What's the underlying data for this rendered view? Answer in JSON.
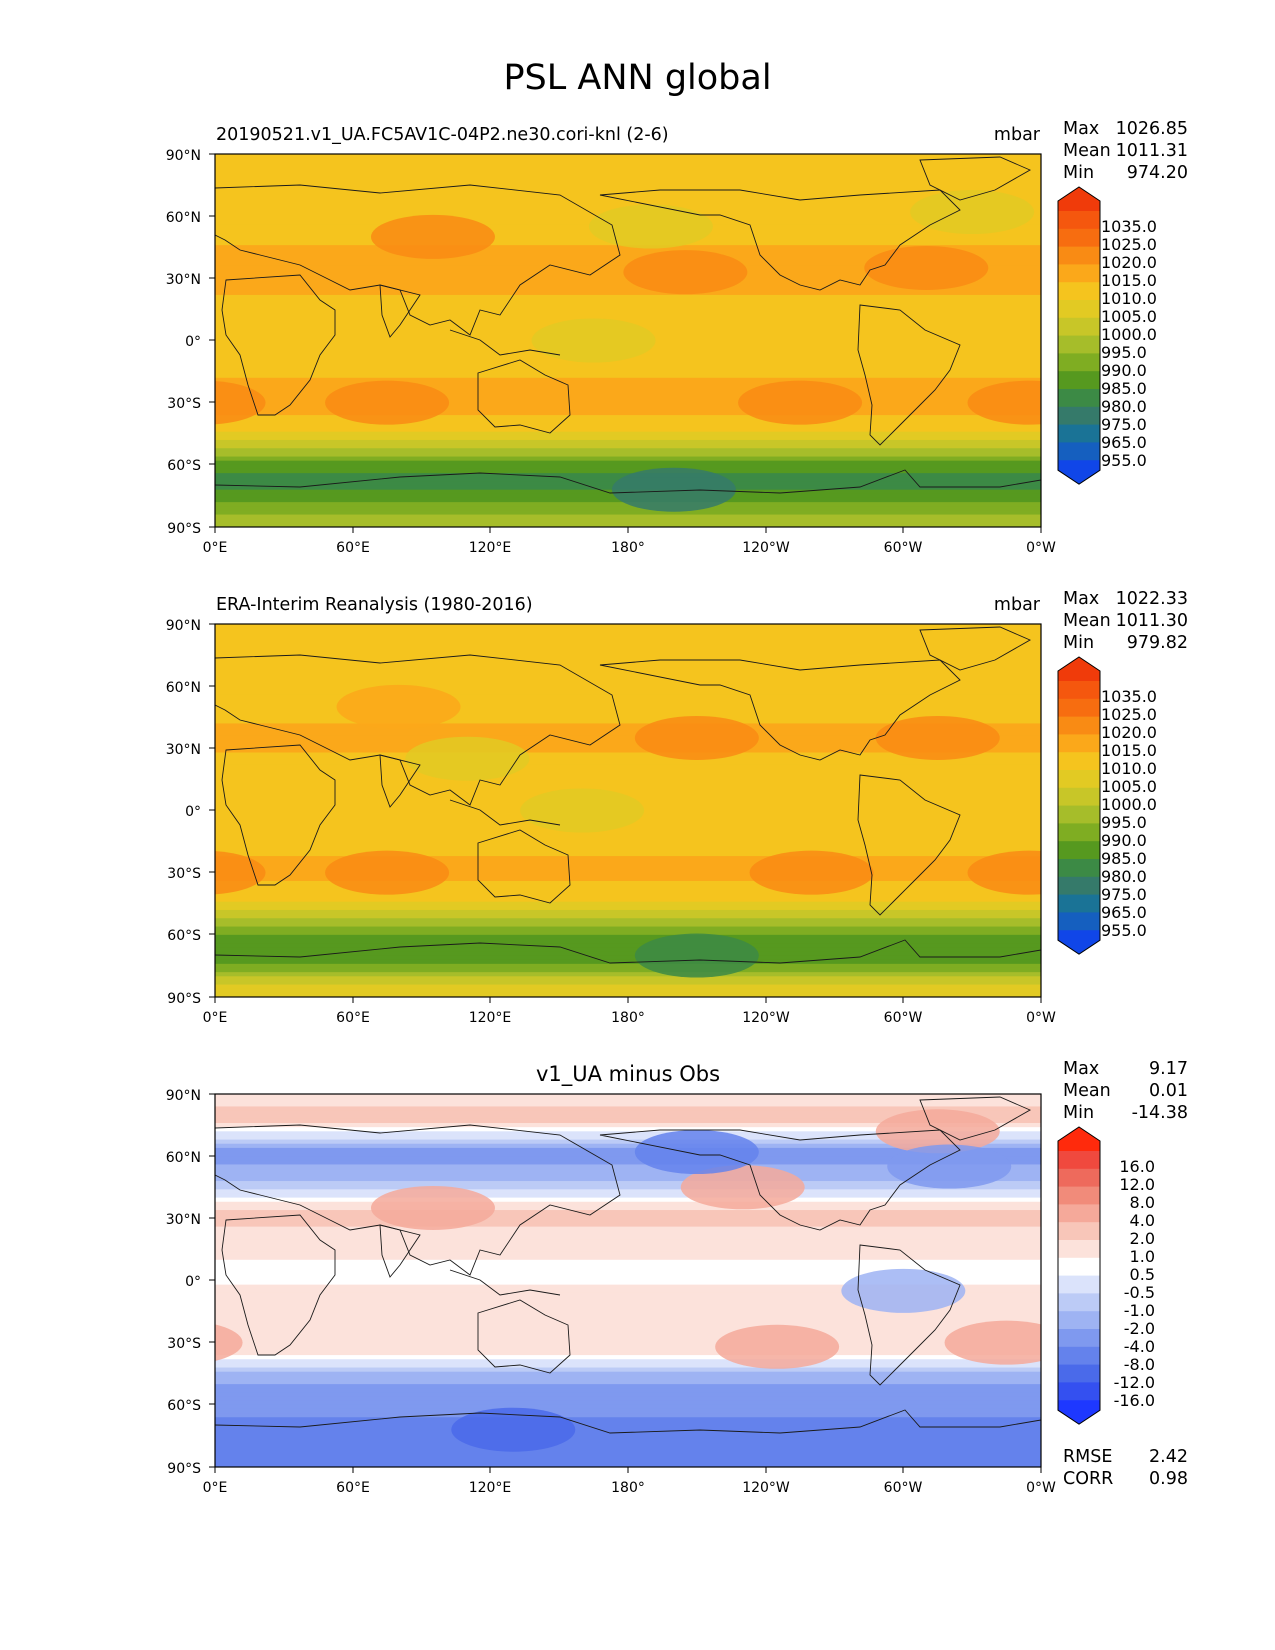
{
  "figure": {
    "title": "PSL ANN global"
  },
  "axes": {
    "lat_labels": [
      "90°N",
      "60°N",
      "30°N",
      "0°",
      "30°S",
      "60°S",
      "90°S"
    ],
    "lon_labels": [
      "0°E",
      "60°E",
      "120°E",
      "180°",
      "120°W",
      "60°W",
      "0°W"
    ]
  },
  "panels": [
    {
      "id": "test",
      "left_title": "20190521.v1_UA.FC5AV1C-04P2.ne30.cori-knl (2-6)",
      "center_title": "",
      "units": "mbar",
      "stats": [
        {
          "label": "Max",
          "value": "1026.85"
        },
        {
          "label": "Mean",
          "value": "1011.31"
        },
        {
          "label": "Min",
          "value": "974.20"
        }
      ],
      "colorbar_labels": [
        "1035.0",
        "1025.0",
        "1020.0",
        "1015.0",
        "1010.0",
        "1005.0",
        "1000.0",
        "995.0",
        "990.0",
        "985.0",
        "980.0",
        "975.0",
        "965.0",
        "955.0"
      ],
      "colorbar_colors": [
        "#f03b0a",
        "#f5570e",
        "#f76d10",
        "#f98b14",
        "#fba81a",
        "#f5c41e",
        "#e2ca23",
        "#c8c628",
        "#a6bd2a",
        "#7fad22",
        "#56991f",
        "#3c8a45",
        "#357a6a",
        "#1a7396",
        "#155fbf",
        "#1046e8"
      ],
      "field": {
        "bands": [
          {
            "lat": 90,
            "value": 1010
          },
          {
            "lat": 78,
            "value": 1013
          },
          {
            "lat": 65,
            "value": 1010
          },
          {
            "lat": 50,
            "value": 1014
          },
          {
            "lat": 35,
            "value": 1018
          },
          {
            "lat": 25,
            "value": 1016
          },
          {
            "lat": 10,
            "value": 1012
          },
          {
            "lat": 0,
            "value": 1010
          },
          {
            "lat": -15,
            "value": 1014
          },
          {
            "lat": -30,
            "value": 1018
          },
          {
            "lat": -42,
            "value": 1012
          },
          {
            "lat": -52,
            "value": 1000
          },
          {
            "lat": -58,
            "value": 990
          },
          {
            "lat": -65,
            "value": 983
          },
          {
            "lat": -72,
            "value": 985
          },
          {
            "lat": -80,
            "value": 992
          },
          {
            "lat": -90,
            "value": 1000
          }
        ],
        "highs": [
          {
            "lon": -155,
            "lat": 33,
            "value": 1022
          },
          {
            "lon": -50,
            "lat": 35,
            "value": 1021
          },
          {
            "lon": 95,
            "lat": 50,
            "value": 1022
          },
          {
            "lon": 75,
            "lat": -30,
            "value": 1021
          },
          {
            "lon": -105,
            "lat": -30,
            "value": 1021
          },
          {
            "lon": -5,
            "lat": -30,
            "value": 1021
          }
        ],
        "lows": [
          {
            "lon": -160,
            "lat": -72,
            "value": 976
          },
          {
            "lon": 165,
            "lat": 0,
            "value": 1008
          },
          {
            "lon": -170,
            "lat": 55,
            "value": 1005
          },
          {
            "lon": -30,
            "lat": 62,
            "value": 1007
          }
        ]
      }
    },
    {
      "id": "reference",
      "left_title": "ERA-Interim Reanalysis (1980-2016)",
      "center_title": "",
      "units": "mbar",
      "stats": [
        {
          "label": "Max",
          "value": "1022.33"
        },
        {
          "label": "Mean",
          "value": "1011.30"
        },
        {
          "label": "Min",
          "value": "979.82"
        }
      ],
      "colorbar_labels": [
        "1035.0",
        "1025.0",
        "1020.0",
        "1015.0",
        "1010.0",
        "1005.0",
        "1000.0",
        "995.0",
        "990.0",
        "985.0",
        "980.0",
        "975.0",
        "965.0",
        "955.0"
      ],
      "colorbar_colors": [
        "#f03b0a",
        "#f5570e",
        "#f76d10",
        "#f98b14",
        "#fba81a",
        "#f5c41e",
        "#e2ca23",
        "#c8c628",
        "#a6bd2a",
        "#7fad22",
        "#56991f",
        "#3c8a45",
        "#357a6a",
        "#1a7396",
        "#155fbf",
        "#1046e8"
      ],
      "field": {
        "bands": [
          {
            "lat": 90,
            "value": 1013
          },
          {
            "lat": 75,
            "value": 1012
          },
          {
            "lat": 60,
            "value": 1011
          },
          {
            "lat": 45,
            "value": 1014
          },
          {
            "lat": 35,
            "value": 1017
          },
          {
            "lat": 20,
            "value": 1013
          },
          {
            "lat": 5,
            "value": 1010
          },
          {
            "lat": -10,
            "value": 1012
          },
          {
            "lat": -30,
            "value": 1017
          },
          {
            "lat": -42,
            "value": 1012
          },
          {
            "lat": -52,
            "value": 1000
          },
          {
            "lat": -60,
            "value": 990
          },
          {
            "lat": -68,
            "value": 985
          },
          {
            "lat": -76,
            "value": 992
          },
          {
            "lat": -84,
            "value": 1005
          },
          {
            "lat": -90,
            "value": 1010
          }
        ],
        "highs": [
          {
            "lon": -150,
            "lat": 35,
            "value": 1020
          },
          {
            "lon": -45,
            "lat": 35,
            "value": 1020
          },
          {
            "lon": 75,
            "lat": -30,
            "value": 1020
          },
          {
            "lon": -100,
            "lat": -30,
            "value": 1020
          },
          {
            "lon": -5,
            "lat": -30,
            "value": 1020
          },
          {
            "lon": 80,
            "lat": 50,
            "value": 1017
          }
        ],
        "lows": [
          {
            "lon": -150,
            "lat": -70,
            "value": 982
          },
          {
            "lon": 110,
            "lat": 25,
            "value": 1008
          },
          {
            "lon": 160,
            "lat": 0,
            "value": 1008
          }
        ]
      }
    },
    {
      "id": "difference",
      "left_title": "",
      "center_title": "v1_UA minus Obs",
      "units": "",
      "stats": [
        {
          "label": "Max",
          "value": "9.17"
        },
        {
          "label": "Mean",
          "value": "0.01"
        },
        {
          "label": "Min",
          "value": "-14.38"
        }
      ],
      "extra_stats": [
        {
          "label": "RMSE",
          "value": "2.42"
        },
        {
          "label": "CORR",
          "value": "0.98"
        }
      ],
      "colorbar_labels": [
        "16.0",
        "12.0",
        "8.0",
        "4.0",
        "2.0",
        "1.0",
        "0.5",
        "-0.5",
        "-1.0",
        "-2.0",
        "-4.0",
        "-8.0",
        "-12.0",
        "-16.0"
      ],
      "colorbar_colors": [
        "#ff2a0c",
        "#f0493e",
        "#ee6a5c",
        "#f18b7a",
        "#f5a99a",
        "#f8c6b9",
        "#fce2db",
        "#ffffff",
        "#dbe3fb",
        "#bccbf6",
        "#9eb3f3",
        "#7f99ef",
        "#6482ec",
        "#4a6aea",
        "#3450f0",
        "#1e38ff"
      ],
      "field": {
        "bands": [
          {
            "lat": 90,
            "value": 1.5
          },
          {
            "lat": 78,
            "value": 2.5
          },
          {
            "lat": 70,
            "value": 0
          },
          {
            "lat": 62,
            "value": -2.5
          },
          {
            "lat": 50,
            "value": -1.5
          },
          {
            "lat": 42,
            "value": 0
          },
          {
            "lat": 32,
            "value": 2.5
          },
          {
            "lat": 20,
            "value": 1.5
          },
          {
            "lat": 5,
            "value": 0.8
          },
          {
            "lat": -10,
            "value": 1.2
          },
          {
            "lat": -25,
            "value": 1.6
          },
          {
            "lat": -35,
            "value": 1.2
          },
          {
            "lat": -40,
            "value": 0
          },
          {
            "lat": -47,
            "value": -1.5
          },
          {
            "lat": -55,
            "value": -3
          },
          {
            "lat": -65,
            "value": -4
          },
          {
            "lat": -75,
            "value": -6
          },
          {
            "lat": -90,
            "value": -6
          }
        ],
        "highs": [
          {
            "lon": 95,
            "lat": 35,
            "value": 6
          },
          {
            "lon": -45,
            "lat": 72,
            "value": 6
          },
          {
            "lon": -130,
            "lat": 45,
            "value": 4
          },
          {
            "lon": -15,
            "lat": -30,
            "value": 4
          },
          {
            "lon": -115,
            "lat": -32,
            "value": 4
          }
        ],
        "lows": [
          {
            "lon": -150,
            "lat": 62,
            "value": -5
          },
          {
            "lon": 130,
            "lat": -72,
            "value": -9
          },
          {
            "lon": -60,
            "lat": -5,
            "value": -1.2
          },
          {
            "lon": -40,
            "lat": 55,
            "value": -3
          }
        ]
      }
    }
  ]
}
